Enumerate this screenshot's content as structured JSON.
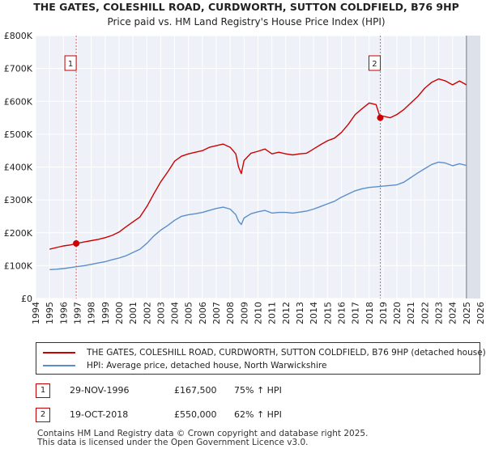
{
  "chart_data": {
    "type": "line",
    "title": "THE GATES, COLESHILL ROAD, CURDWORTH, SUTTON COLDFIELD, B76 9HP",
    "subtitle": "Price paid vs. HM Land Registry's House Price Index (HPI)",
    "xlim": [
      1994,
      2026
    ],
    "ylim": [
      0,
      800000
    ],
    "x_ticks": [
      1994,
      1995,
      1996,
      1997,
      1998,
      1999,
      2000,
      2001,
      2002,
      2003,
      2004,
      2005,
      2006,
      2007,
      2008,
      2009,
      2010,
      2011,
      2012,
      2013,
      2014,
      2015,
      2016,
      2017,
      2018,
      2019,
      2020,
      2021,
      2022,
      2023,
      2024,
      2025,
      2026
    ],
    "y_ticks": [
      {
        "value": 0,
        "label": "£0"
      },
      {
        "value": 100000,
        "label": "£100K"
      },
      {
        "value": 200000,
        "label": "£200K"
      },
      {
        "value": 300000,
        "label": "£300K"
      },
      {
        "value": 400000,
        "label": "£400K"
      },
      {
        "value": 500000,
        "label": "£500K"
      },
      {
        "value": 600000,
        "label": "£600K"
      },
      {
        "value": 700000,
        "label": "£700K"
      },
      {
        "value": 800000,
        "label": "£800K"
      }
    ],
    "series": [
      {
        "name": "THE GATES, COLESHILL ROAD, CURDWORTH, SUTTON COLDFIELD, B76 9HP (detached house)",
        "color": "#cc0000",
        "points": [
          [
            1995.0,
            150000
          ],
          [
            1995.5,
            155000
          ],
          [
            1996.0,
            160000
          ],
          [
            1996.5,
            163000
          ],
          [
            1996.92,
            167500
          ],
          [
            1997.5,
            172000
          ],
          [
            1998.0,
            176000
          ],
          [
            1998.5,
            180000
          ],
          [
            1999.0,
            185000
          ],
          [
            1999.5,
            192000
          ],
          [
            2000.0,
            202000
          ],
          [
            2000.5,
            218000
          ],
          [
            2001.0,
            233000
          ],
          [
            2001.5,
            248000
          ],
          [
            2002.0,
            280000
          ],
          [
            2002.5,
            318000
          ],
          [
            2003.0,
            355000
          ],
          [
            2003.5,
            385000
          ],
          [
            2004.0,
            418000
          ],
          [
            2004.5,
            433000
          ],
          [
            2005.0,
            440000
          ],
          [
            2005.5,
            445000
          ],
          [
            2006.0,
            450000
          ],
          [
            2006.5,
            460000
          ],
          [
            2007.0,
            465000
          ],
          [
            2007.5,
            470000
          ],
          [
            2008.0,
            460000
          ],
          [
            2008.4,
            440000
          ],
          [
            2008.6,
            400000
          ],
          [
            2008.8,
            380000
          ],
          [
            2009.0,
            420000
          ],
          [
            2009.5,
            442000
          ],
          [
            2010.0,
            448000
          ],
          [
            2010.5,
            455000
          ],
          [
            2011.0,
            440000
          ],
          [
            2011.5,
            445000
          ],
          [
            2012.0,
            440000
          ],
          [
            2012.5,
            437000
          ],
          [
            2013.0,
            440000
          ],
          [
            2013.5,
            442000
          ],
          [
            2014.0,
            455000
          ],
          [
            2014.5,
            468000
          ],
          [
            2015.0,
            480000
          ],
          [
            2015.5,
            488000
          ],
          [
            2016.0,
            505000
          ],
          [
            2016.5,
            530000
          ],
          [
            2017.0,
            560000
          ],
          [
            2017.5,
            578000
          ],
          [
            2018.0,
            595000
          ],
          [
            2018.5,
            590000
          ],
          [
            2018.8,
            550000
          ],
          [
            2019.0,
            555000
          ],
          [
            2019.5,
            550000
          ],
          [
            2020.0,
            560000
          ],
          [
            2020.5,
            575000
          ],
          [
            2021.0,
            595000
          ],
          [
            2021.5,
            615000
          ],
          [
            2022.0,
            640000
          ],
          [
            2022.5,
            658000
          ],
          [
            2023.0,
            668000
          ],
          [
            2023.5,
            662000
          ],
          [
            2024.0,
            650000
          ],
          [
            2024.5,
            662000
          ],
          [
            2025.0,
            650000
          ]
        ]
      },
      {
        "name": "HPI: Average price, detached house, North Warwickshire",
        "color": "#5b8ec9",
        "points": [
          [
            1995.0,
            88000
          ],
          [
            1995.5,
            89000
          ],
          [
            1996.0,
            91000
          ],
          [
            1996.5,
            94000
          ],
          [
            1997.0,
            97000
          ],
          [
            1997.5,
            100000
          ],
          [
            1998.0,
            104000
          ],
          [
            1998.5,
            108000
          ],
          [
            1999.0,
            112000
          ],
          [
            1999.5,
            118000
          ],
          [
            2000.0,
            123000
          ],
          [
            2000.5,
            130000
          ],
          [
            2001.0,
            140000
          ],
          [
            2001.5,
            150000
          ],
          [
            2002.0,
            168000
          ],
          [
            2002.5,
            190000
          ],
          [
            2003.0,
            208000
          ],
          [
            2003.5,
            222000
          ],
          [
            2004.0,
            238000
          ],
          [
            2004.5,
            250000
          ],
          [
            2005.0,
            255000
          ],
          [
            2005.5,
            258000
          ],
          [
            2006.0,
            262000
          ],
          [
            2006.5,
            268000
          ],
          [
            2007.0,
            274000
          ],
          [
            2007.5,
            278000
          ],
          [
            2008.0,
            272000
          ],
          [
            2008.4,
            255000
          ],
          [
            2008.6,
            235000
          ],
          [
            2008.8,
            225000
          ],
          [
            2009.0,
            245000
          ],
          [
            2009.5,
            258000
          ],
          [
            2010.0,
            264000
          ],
          [
            2010.5,
            268000
          ],
          [
            2011.0,
            260000
          ],
          [
            2011.5,
            262000
          ],
          [
            2012.0,
            262000
          ],
          [
            2012.5,
            260000
          ],
          [
            2013.0,
            263000
          ],
          [
            2013.5,
            266000
          ],
          [
            2014.0,
            272000
          ],
          [
            2014.5,
            280000
          ],
          [
            2015.0,
            288000
          ],
          [
            2015.5,
            296000
          ],
          [
            2016.0,
            308000
          ],
          [
            2016.5,
            318000
          ],
          [
            2017.0,
            328000
          ],
          [
            2017.5,
            334000
          ],
          [
            2018.0,
            338000
          ],
          [
            2018.5,
            340000
          ],
          [
            2019.0,
            342000
          ],
          [
            2019.5,
            344000
          ],
          [
            2020.0,
            346000
          ],
          [
            2020.5,
            354000
          ],
          [
            2021.0,
            368000
          ],
          [
            2021.5,
            382000
          ],
          [
            2022.0,
            395000
          ],
          [
            2022.5,
            408000
          ],
          [
            2023.0,
            415000
          ],
          [
            2023.5,
            412000
          ],
          [
            2024.0,
            404000
          ],
          [
            2024.5,
            410000
          ],
          [
            2025.0,
            405000
          ]
        ]
      }
    ],
    "annotations": [
      {
        "label": "1",
        "x": 1996.92,
        "y": 167500
      },
      {
        "label": "2",
        "x": 2018.8,
        "y": 550000
      }
    ],
    "grid": true,
    "legend_position": "below"
  },
  "sales": [
    {
      "num": "1",
      "date": "29-NOV-1996",
      "price": "£167,500",
      "hpi": "75% ↑ HPI"
    },
    {
      "num": "2",
      "date": "19-OCT-2018",
      "price": "£550,000",
      "hpi": "62% ↑ HPI"
    }
  ],
  "footer": {
    "line1": "Contains HM Land Registry data © Crown copyright and database right 2025.",
    "line2": "This data is licensed under the Open Government Licence v3.0."
  }
}
